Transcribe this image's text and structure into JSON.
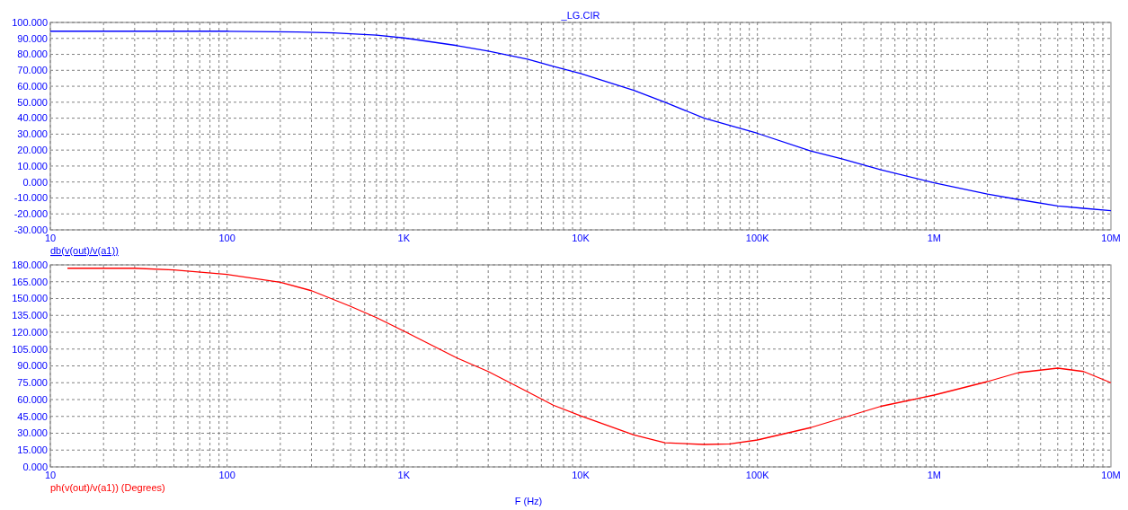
{
  "chart_data": [
    {
      "type": "line",
      "title": "_LG.CIR",
      "log": "x",
      "grid": true,
      "legend": "bottom left",
      "xlim": [
        10,
        10000000
      ],
      "xticks": [
        {
          "value": 10,
          "label": "10"
        },
        {
          "value": 100,
          "label": "100"
        },
        {
          "value": 1000,
          "label": "1K"
        },
        {
          "value": 10000,
          "label": "10K"
        },
        {
          "value": 100000,
          "label": "100K"
        },
        {
          "value": 1000000,
          "label": "1M"
        },
        {
          "value": 10000000,
          "label": "10M"
        }
      ],
      "ylim": [
        -30,
        100
      ],
      "yticks": [
        {
          "value": -30,
          "label": "-30.000"
        },
        {
          "value": -20,
          "label": "-20.000"
        },
        {
          "value": -10,
          "label": "-10.000"
        },
        {
          "value": 0,
          "label": "0.000"
        },
        {
          "value": 10,
          "label": "10.000"
        },
        {
          "value": 20,
          "label": "20.000"
        },
        {
          "value": 30,
          "label": "30.000"
        },
        {
          "value": 40,
          "label": "40.000"
        },
        {
          "value": 50,
          "label": "50.000"
        },
        {
          "value": 60,
          "label": "60.000"
        },
        {
          "value": 70,
          "label": "70.000"
        },
        {
          "value": 80,
          "label": "80.000"
        },
        {
          "value": 90,
          "label": "90.000"
        },
        {
          "value": 100,
          "label": "100.000"
        }
      ],
      "series": [
        {
          "name": "db(v(out)/v(a1))",
          "color": "#0000ff",
          "x": [
            10,
            100,
            250,
            400,
            700,
            1000,
            2000,
            3000,
            5000,
            7000,
            10000,
            20000,
            30000,
            50000,
            100000,
            200000,
            300000,
            500000,
            1000000,
            2000000,
            3000000,
            5000000,
            7000000,
            10000000
          ],
          "values": [
            94.5,
            94.5,
            94,
            93.5,
            92,
            90.3,
            85.5,
            82,
            77,
            72.5,
            68,
            57.5,
            50,
            40,
            30.5,
            19.5,
            14.5,
            7.7,
            -0.5,
            -7.5,
            -11,
            -15,
            -16.5,
            -18
          ]
        }
      ]
    },
    {
      "type": "line",
      "xlabel": "F (Hz)",
      "log": "x",
      "grid": true,
      "legend": "bottom left",
      "xlim": [
        10,
        10000000
      ],
      "xticks": [
        {
          "value": 10,
          "label": "10"
        },
        {
          "value": 100,
          "label": "100"
        },
        {
          "value": 1000,
          "label": "1K"
        },
        {
          "value": 10000,
          "label": "10K"
        },
        {
          "value": 100000,
          "label": "100K"
        },
        {
          "value": 1000000,
          "label": "1M"
        },
        {
          "value": 10000000,
          "label": "10M"
        }
      ],
      "ylim": [
        0,
        180
      ],
      "yticks": [
        {
          "value": 0,
          "label": "0.000"
        },
        {
          "value": 15,
          "label": "15.000"
        },
        {
          "value": 30,
          "label": "30.000"
        },
        {
          "value": 45,
          "label": "45.000"
        },
        {
          "value": 60,
          "label": "60.000"
        },
        {
          "value": 75,
          "label": "75.000"
        },
        {
          "value": 90,
          "label": "90.000"
        },
        {
          "value": 105,
          "label": "105.000"
        },
        {
          "value": 120,
          "label": "120.000"
        },
        {
          "value": 135,
          "label": "135.000"
        },
        {
          "value": 150,
          "label": "150.000"
        },
        {
          "value": 165,
          "label": "165.000"
        },
        {
          "value": 180,
          "label": "180.000"
        }
      ],
      "series": [
        {
          "name": "ph(v(out)/v(a1)) (Degrees)",
          "color": "#ff0000",
          "x": [
            12.5,
            30,
            50,
            100,
            200,
            300,
            500,
            700,
            1000,
            2000,
            3000,
            5000,
            7000,
            10000,
            20000,
            30000,
            50000,
            70000,
            100000,
            200000,
            500000,
            1000000,
            2000000,
            3000000,
            5000000,
            7000000,
            10000000
          ],
          "values": [
            177,
            177,
            175.5,
            171.5,
            164.5,
            157,
            143,
            133,
            121,
            97,
            85,
            67,
            55,
            45.5,
            28.5,
            21.5,
            20,
            20.5,
            24,
            35,
            54,
            64,
            76,
            84,
            88,
            85,
            75
          ]
        }
      ]
    }
  ]
}
